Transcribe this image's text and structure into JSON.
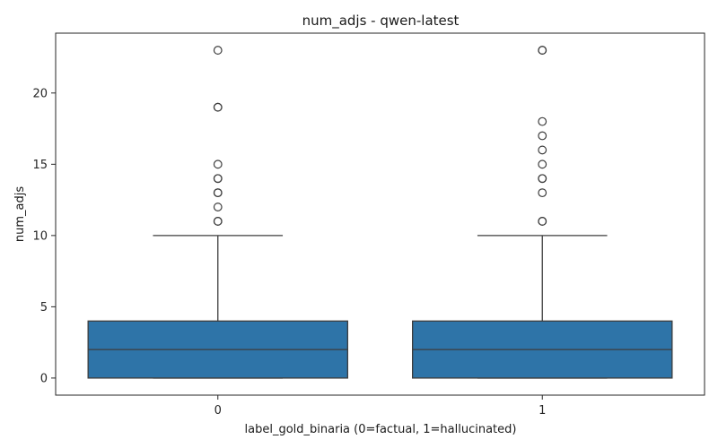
{
  "chart_data": {
    "type": "box",
    "title": "num_adjs - qwen-latest",
    "xlabel": "label_gold_binaria (0=factual, 1=hallucinated)",
    "ylabel": "num_adjs",
    "categories": [
      "0",
      "1"
    ],
    "ylim": [
      -1.2,
      24.2
    ],
    "yticks": [
      0,
      5,
      10,
      15,
      20
    ],
    "grid": false,
    "box_color": "#2e74a8",
    "line_color": "#3d3d3d",
    "boxes": [
      {
        "category": "0",
        "min": 0,
        "q1": 0,
        "median": 2,
        "q3": 4,
        "max": 10,
        "outliers": [
          11,
          11,
          12,
          13,
          13,
          14,
          14,
          15,
          19,
          19,
          23
        ]
      },
      {
        "category": "1",
        "min": 0,
        "q1": 0,
        "median": 2,
        "q3": 4,
        "max": 10,
        "outliers": [
          11,
          11,
          13,
          14,
          14,
          15,
          16,
          17,
          18,
          23,
          23
        ]
      }
    ]
  }
}
